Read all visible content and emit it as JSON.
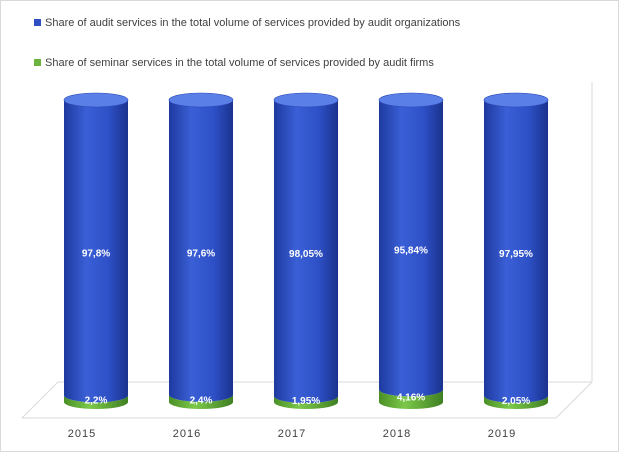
{
  "chart_data": {
    "type": "bar",
    "stacked": true,
    "three_d": true,
    "shape": "cylinder",
    "categories": [
      "2015",
      "2016",
      "2017",
      "2018",
      "2019"
    ],
    "series": [
      {
        "name": "Share of seminar services in the total volume of services provided by audit firms",
        "values": [
          2.2,
          2.4,
          1.95,
          4.16,
          2.05
        ],
        "labels": [
          "2,2%",
          "2,4%",
          "1,95%",
          "4,16%",
          "2,05%"
        ],
        "color": "#6ab33e"
      },
      {
        "name": "Share of audit services in the total volume of services provided by audit organizations",
        "values": [
          97.8,
          97.6,
          98.05,
          95.84,
          97.95
        ],
        "labels": [
          "97,8%",
          "97,6%",
          "98,05%",
          "95,84%",
          "97,95%"
        ],
        "color": "#2e4fc4"
      }
    ],
    "legend_order": [
      1,
      0
    ],
    "legend_position": "top-left",
    "grid": false,
    "ylim": [
      0,
      100
    ]
  }
}
